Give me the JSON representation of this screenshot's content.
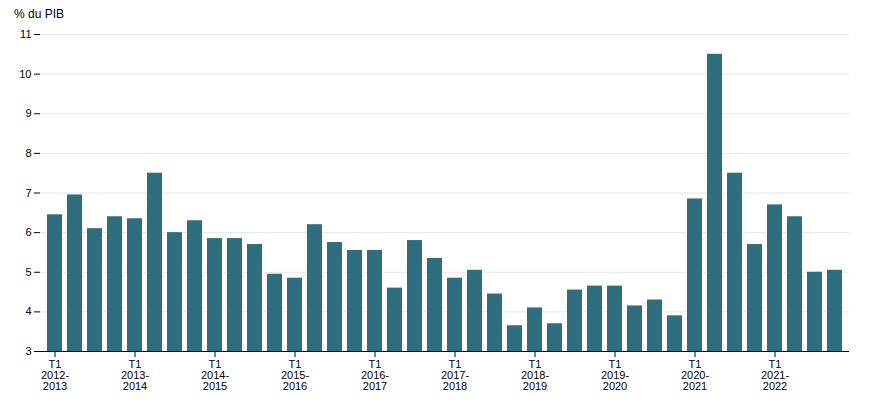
{
  "chart_data": {
    "type": "bar",
    "categories": [
      "T1\n2012-\n2013",
      null,
      null,
      null,
      "T1\n2013-\n2014",
      null,
      null,
      null,
      "T1\n2014-\n2015",
      null,
      null,
      null,
      "T1\n2015-\n2016",
      null,
      null,
      null,
      "T1\n2016-\n2017",
      null,
      null,
      null,
      "T1\n2017-\n2018",
      null,
      null,
      null,
      "T1\n2018-\n2019",
      null,
      null,
      null,
      "T1\n2019-\n2020",
      null,
      null,
      null,
      "T1\n2020-\n2021",
      null,
      null,
      null,
      "T1\n2021-\n2022",
      null,
      null,
      null
    ],
    "values": [
      6.45,
      6.95,
      6.1,
      6.4,
      6.35,
      7.5,
      6.0,
      6.3,
      5.85,
      5.85,
      5.7,
      4.95,
      4.85,
      6.2,
      5.75,
      5.55,
      5.55,
      4.6,
      5.8,
      5.35,
      4.85,
      5.05,
      4.45,
      3.65,
      4.1,
      3.7,
      4.55,
      4.65,
      4.65,
      4.15,
      4.3,
      3.9,
      6.85,
      10.5,
      7.5,
      5.7,
      6.7,
      6.4,
      5.0,
      5.05
    ],
    "color": "#2e6e7e",
    "y_label": "% du PIB",
    "ylim": [
      3,
      11
    ],
    "yticks": [
      3,
      4,
      5,
      6,
      7,
      8,
      9,
      10,
      11
    ],
    "grid": true
  }
}
